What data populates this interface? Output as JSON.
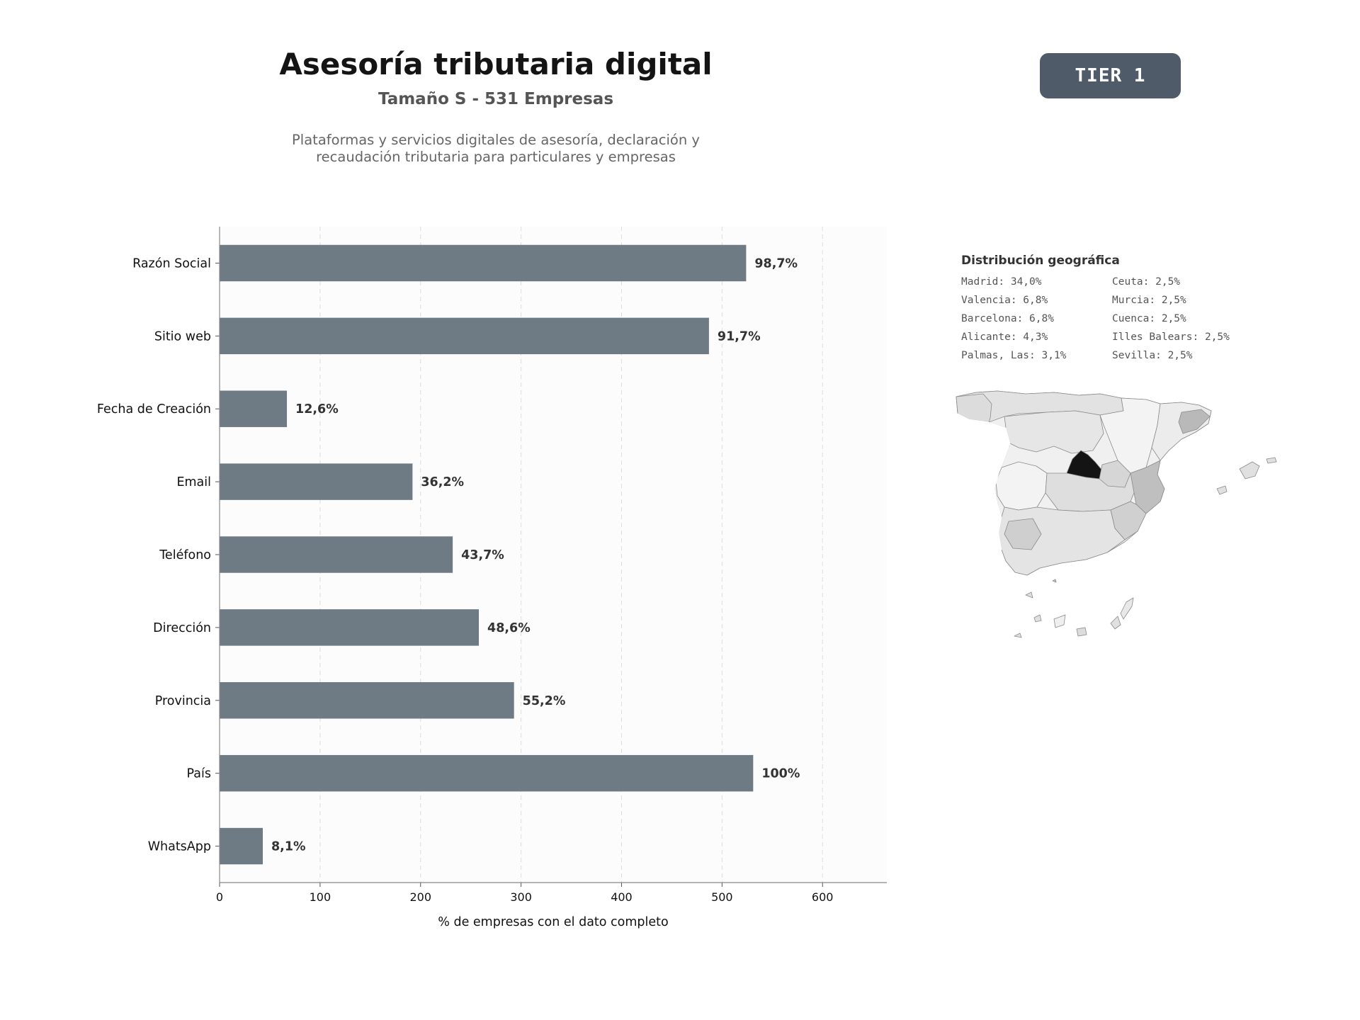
{
  "header": {
    "title": "Asesoría tributaria digital",
    "subtitle": "Tamaño S - 531 Empresas",
    "description_lines": [
      "Plataformas y servicios digitales de asesoría, declaración y",
      "recaudación tributaria para particulares y empresas"
    ]
  },
  "badge": {
    "label": "TIER 1",
    "color": "#4f5b68"
  },
  "chart_data": {
    "type": "bar",
    "orientation": "horizontal",
    "categories": [
      "Razón Social",
      "Sitio web",
      "Fecha de Creación",
      "Email",
      "Teléfono",
      "Dirección",
      "Provincia",
      "País",
      "WhatsApp"
    ],
    "values": [
      524,
      487,
      67,
      192,
      232,
      258,
      293,
      531,
      43
    ],
    "data_labels": [
      "98,7%",
      "91,7%",
      "12,6%",
      "36,2%",
      "43,7%",
      "48,6%",
      "55,2%",
      "100%",
      "8,1%"
    ],
    "xlabel": "% de empresas con el dato completo",
    "xlim": [
      0,
      664
    ],
    "xticks": [
      0,
      100,
      200,
      300,
      400,
      500,
      600
    ],
    "grid": "vertical dashed",
    "bar_color": "#6e7a84"
  },
  "geo": {
    "title": "Distribución geográfica",
    "column_left": [
      "Madrid: 34,0%",
      "Valencia: 6,8%",
      "Barcelona: 6,8%",
      "Alicante: 4,3%",
      "Palmas, Las: 3,1%"
    ],
    "column_right": [
      "Ceuta: 2,5%",
      "Murcia: 2,5%",
      "Cuenca: 2,5%",
      "Illes Balears: 2,5%",
      "Sevilla: 2,5%"
    ]
  }
}
